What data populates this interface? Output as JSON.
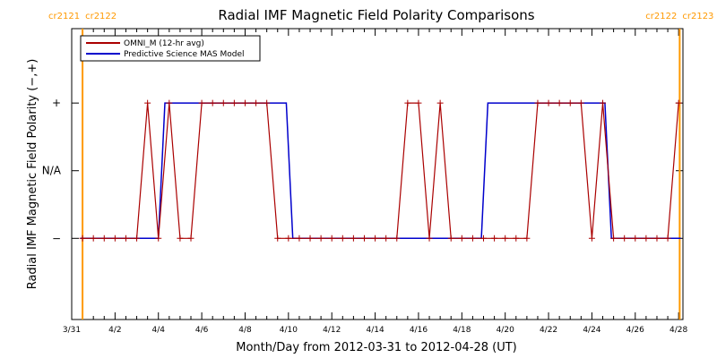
{
  "chart_data": {
    "type": "line",
    "title": "Radial IMF Magnetic Field Polarity Comparisons",
    "xlabel": "Month/Day from 2012-03-31 to 2012-04-28 (UT)",
    "ylabel": "Radial IMF Magnetic Field Polarity (−,+)",
    "x_tick_labels": [
      "3/31",
      "4/2",
      "4/4",
      "4/6",
      "4/8",
      "4/10",
      "4/12",
      "4/14",
      "4/16",
      "4/18",
      "4/20",
      "4/22",
      "4/24",
      "4/26",
      "4/28"
    ],
    "x_ticks_days": [
      0,
      2,
      4,
      6,
      8,
      10,
      12,
      14,
      16,
      18,
      20,
      22,
      24,
      26,
      28
    ],
    "xlim_days": [
      0,
      28.2
    ],
    "y_tick_labels": [
      "−",
      "N/A",
      "+"
    ],
    "y_ticks": [
      -1,
      0,
      1
    ],
    "ylim": [
      -2.2,
      2.1
    ],
    "carrington_markers": [
      {
        "day": 0.5,
        "left": "cr2121",
        "right": "cr2122",
        "color": "#ff9900"
      },
      {
        "day": 28.05,
        "left": "cr2122",
        "right": "cr2123",
        "color": "#ff9900"
      }
    ],
    "legend_position": "top-left",
    "series": [
      {
        "name": "OMNI_M (12-hr avg)",
        "color": "#aa0000",
        "markers": "plus",
        "x": [
          0.5,
          1.0,
          1.5,
          2.0,
          2.5,
          3.0,
          3.5,
          4.0,
          4.5,
          5.0,
          5.5,
          6.0,
          6.5,
          7.0,
          7.5,
          8.0,
          8.5,
          9.0,
          9.5,
          10.0,
          10.5,
          11.0,
          11.5,
          12.0,
          12.5,
          13.0,
          13.5,
          14.0,
          14.5,
          15.0,
          15.5,
          16.0,
          16.5,
          17.0,
          17.5,
          18.0,
          18.5,
          19.0,
          19.5,
          20.0,
          20.5,
          21.0,
          21.5,
          22.0,
          22.5,
          23.0,
          23.5,
          24.0,
          24.5,
          25.0,
          25.5,
          26.0,
          26.5,
          27.0,
          27.5,
          28.0
        ],
        "y": [
          -1,
          -1,
          -1,
          -1,
          -1,
          -1,
          1,
          -1,
          1,
          -1,
          -1,
          1,
          1,
          1,
          1,
          1,
          1,
          1,
          -1,
          -1,
          -1,
          -1,
          -1,
          -1,
          -1,
          -1,
          -1,
          -1,
          -1,
          -1,
          1,
          1,
          -1,
          1,
          -1,
          -1,
          -1,
          -1,
          -1,
          -1,
          -1,
          -1,
          1,
          1,
          1,
          1,
          1,
          -1,
          1,
          -1,
          -1,
          -1,
          -1,
          -1,
          -1,
          1
        ]
      },
      {
        "name": "Predictive Science MAS Model",
        "color": "#0000cc",
        "x": [
          0.4,
          4.0,
          4.3,
          9.9,
          10.2,
          18.9,
          19.2,
          24.6,
          24.9,
          28.1
        ],
        "y": [
          -1,
          -1,
          1,
          1,
          -1,
          -1,
          1,
          1,
          -1,
          -1
        ]
      }
    ]
  }
}
